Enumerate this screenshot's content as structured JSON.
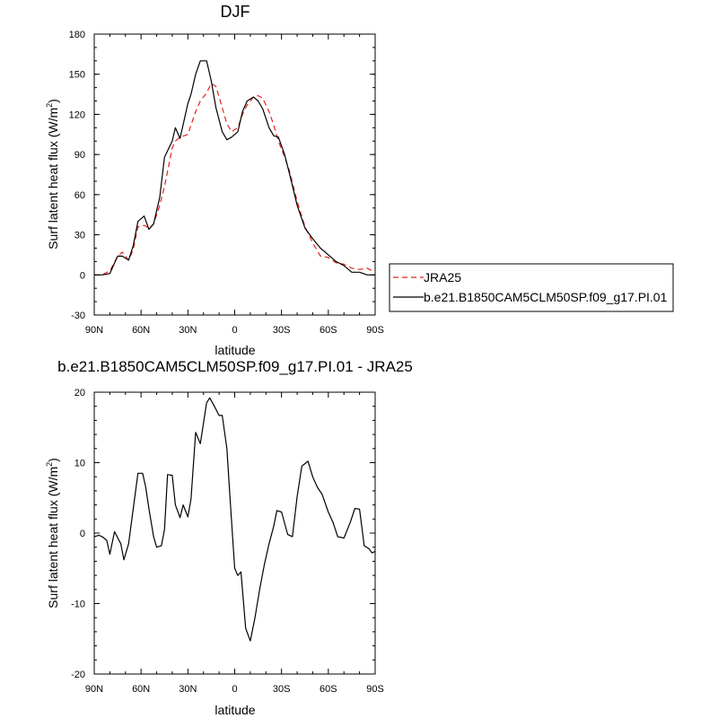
{
  "chart_data": [
    {
      "type": "line",
      "title": "DJF",
      "xlabel": "latitude",
      "ylabel": "Surf latent heat flux (W/m",
      "ylabel_sup": "2",
      "ylabel_tail": ")",
      "xlim": [
        90,
        -90
      ],
      "ylim": [
        -30,
        180
      ],
      "xticks": [
        {
          "value": 90,
          "label": "90N"
        },
        {
          "value": 60,
          "label": "60N"
        },
        {
          "value": 30,
          "label": "30N"
        },
        {
          "value": 0,
          "label": "0"
        },
        {
          "value": -30,
          "label": "30S"
        },
        {
          "value": -60,
          "label": "60S"
        },
        {
          "value": -90,
          "label": "90S"
        }
      ],
      "yticks": [
        -30,
        0,
        30,
        60,
        90,
        120,
        150,
        180
      ],
      "legend_position": "right",
      "x": [
        90,
        85,
        80,
        75,
        72,
        68,
        65,
        62,
        58,
        55,
        52,
        48,
        45,
        40,
        38,
        35,
        30,
        28,
        25,
        22,
        18,
        15,
        12,
        8,
        5,
        2,
        -2,
        -5,
        -8,
        -12,
        -15,
        -18,
        -22,
        -25,
        -28,
        -32,
        -35,
        -40,
        -45,
        -50,
        -55,
        -60,
        -65,
        -70,
        -75,
        -80,
        -85,
        -88,
        -90
      ],
      "series": [
        {
          "name": "JRA25",
          "color": "#e8211c",
          "dash": "dashed",
          "values": [
            0,
            0,
            3,
            14,
            17,
            11,
            19,
            36,
            37,
            35,
            38,
            52,
            66,
            95,
            100,
            103,
            105,
            112,
            122,
            130,
            136,
            143,
            141,
            125,
            113,
            107,
            110,
            120,
            127,
            133,
            134,
            132,
            122,
            112,
            100,
            88,
            78,
            55,
            36,
            24,
            14,
            13,
            9,
            8,
            5,
            4,
            5,
            3,
            2
          ]
        },
        {
          "name": "b.e21.B1850CAM5CLM50SP.f09_g17.PI.01",
          "color": "#000000",
          "dash": "solid",
          "values": [
            0,
            0,
            1,
            14,
            14,
            11,
            22,
            40,
            44,
            34,
            38,
            58,
            88,
            100,
            110,
            102,
            128,
            135,
            150,
            160,
            160,
            145,
            125,
            107,
            101,
            103,
            107,
            122,
            130,
            133,
            130,
            124,
            110,
            104,
            103,
            90,
            76,
            52,
            35,
            27,
            20,
            15,
            10,
            7,
            2,
            2,
            0,
            0,
            0
          ]
        }
      ]
    },
    {
      "type": "line",
      "title": "b.e21.B1850CAM5CLM50SP.f09_g17.PI.01 - JRA25",
      "xlabel": "latitude",
      "ylabel": "Surf latent heat flux (W/m",
      "ylabel_sup": "2",
      "ylabel_tail": ")",
      "xlim": [
        90,
        -90
      ],
      "ylim": [
        -20,
        20
      ],
      "xticks": [
        {
          "value": 90,
          "label": "90N"
        },
        {
          "value": 60,
          "label": "60N"
        },
        {
          "value": 30,
          "label": "30N"
        },
        {
          "value": 0,
          "label": "0"
        },
        {
          "value": -30,
          "label": "30S"
        },
        {
          "value": -60,
          "label": "60S"
        },
        {
          "value": -90,
          "label": "90S"
        }
      ],
      "yticks": [
        -20,
        -10,
        0,
        10,
        20
      ],
      "x": [
        90,
        87,
        85,
        82,
        80,
        77,
        73,
        71,
        68,
        65,
        62,
        59,
        57,
        55,
        52,
        50,
        47,
        45,
        43,
        40,
        38,
        35,
        33,
        30,
        28,
        25,
        22,
        18,
        16,
        13,
        10,
        8,
        5,
        3,
        0,
        -2,
        -4,
        -7,
        -10,
        -13,
        -16,
        -19,
        -22,
        -25,
        -27,
        -30,
        -34,
        -37,
        -40,
        -43,
        -47,
        -50,
        -53,
        -56,
        -60,
        -63,
        -66,
        -70,
        -74,
        -77,
        -80,
        -83,
        -86,
        -88,
        -90
      ],
      "series": [
        {
          "name": "",
          "color": "#000000",
          "dash": "solid",
          "values": [
            -0.5,
            -0.3,
            -0.5,
            -1.0,
            -3.0,
            0.2,
            -1.5,
            -3.8,
            -1.5,
            3.5,
            8.5,
            8.5,
            6.5,
            3.5,
            -0.5,
            -2.0,
            -1.8,
            0.5,
            8.3,
            8.2,
            4.0,
            2.2,
            4.0,
            2.3,
            4.8,
            14.3,
            12.7,
            18.5,
            19.2,
            18.0,
            16.7,
            16.7,
            12.0,
            5.0,
            -5.0,
            -6.0,
            -5.5,
            -13.5,
            -15.3,
            -12.0,
            -8.0,
            -4.5,
            -1.5,
            1.0,
            3.2,
            3.0,
            -0.2,
            -0.5,
            5.2,
            9.5,
            10.2,
            8.0,
            6.5,
            5.5,
            3.0,
            1.5,
            -0.5,
            -0.7,
            1.5,
            3.5,
            3.4,
            -1.8,
            -2.2,
            -2.8,
            -2.6
          ]
        }
      ]
    }
  ],
  "legend": {
    "items": [
      {
        "label": "JRA25"
      },
      {
        "label": "b.e21.B1850CAM5CLM50SP.f09_g17.PI.01"
      }
    ]
  }
}
